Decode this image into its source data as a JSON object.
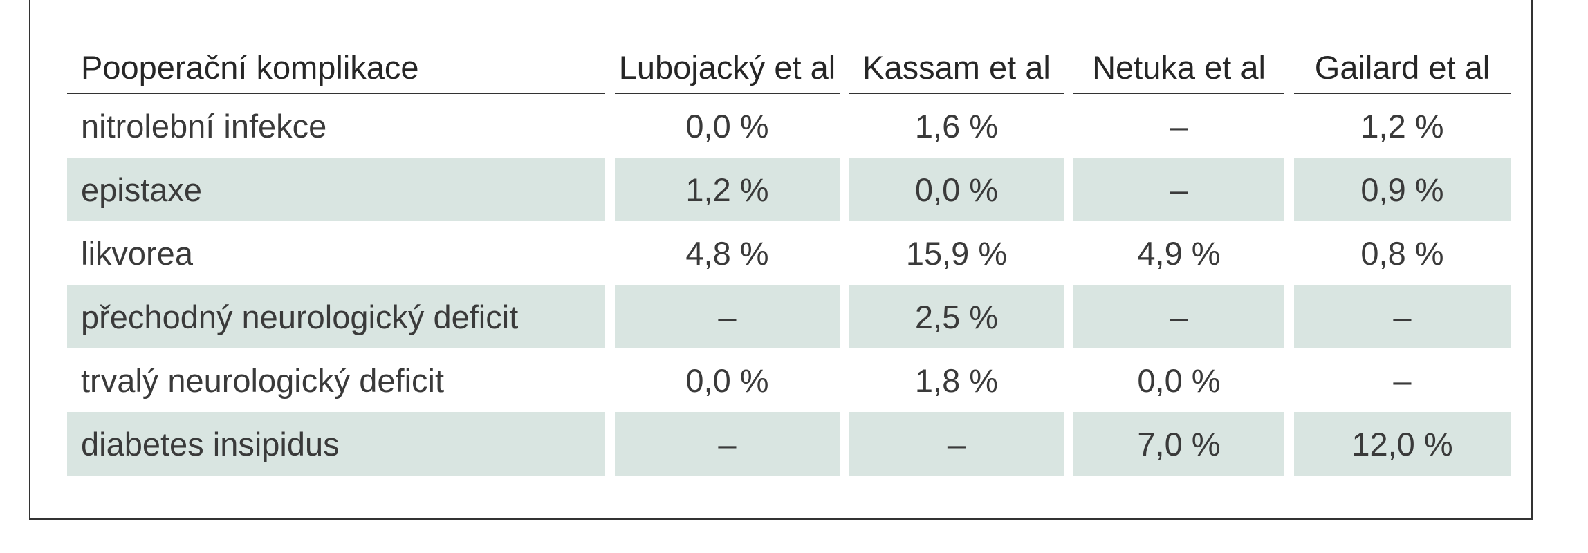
{
  "table": {
    "headers": [
      "Pooperační komplikace",
      "Lubojacký et al",
      "Kassam et al",
      "Netuka et al",
      "Gailard et al"
    ],
    "rows": [
      {
        "label": "nitrolební infekce",
        "values": [
          "0,0 %",
          "1,6 %",
          "–",
          "1,2 %"
        ],
        "shaded": false
      },
      {
        "label": "epistaxe",
        "values": [
          "1,2 %",
          "0,0 %",
          "–",
          "0,9 %"
        ],
        "shaded": true
      },
      {
        "label": "likvorea",
        "values": [
          "4,8 %",
          "15,9 %",
          "4,9 %",
          "0,8 %"
        ],
        "shaded": false
      },
      {
        "label": "přechodný neurologický deficit",
        "values": [
          "–",
          "2,5 %",
          "–",
          "–"
        ],
        "shaded": true
      },
      {
        "label": "trvalý neurologický deficit",
        "values": [
          "0,0 %",
          "1,8 %",
          "0,0 %",
          "–"
        ],
        "shaded": false
      },
      {
        "label": "diabetes insipidus",
        "values": [
          "–",
          "–",
          "7,0 %",
          "12,0 %"
        ],
        "shaded": true
      }
    ],
    "shade_color": "#d9e5e1"
  }
}
